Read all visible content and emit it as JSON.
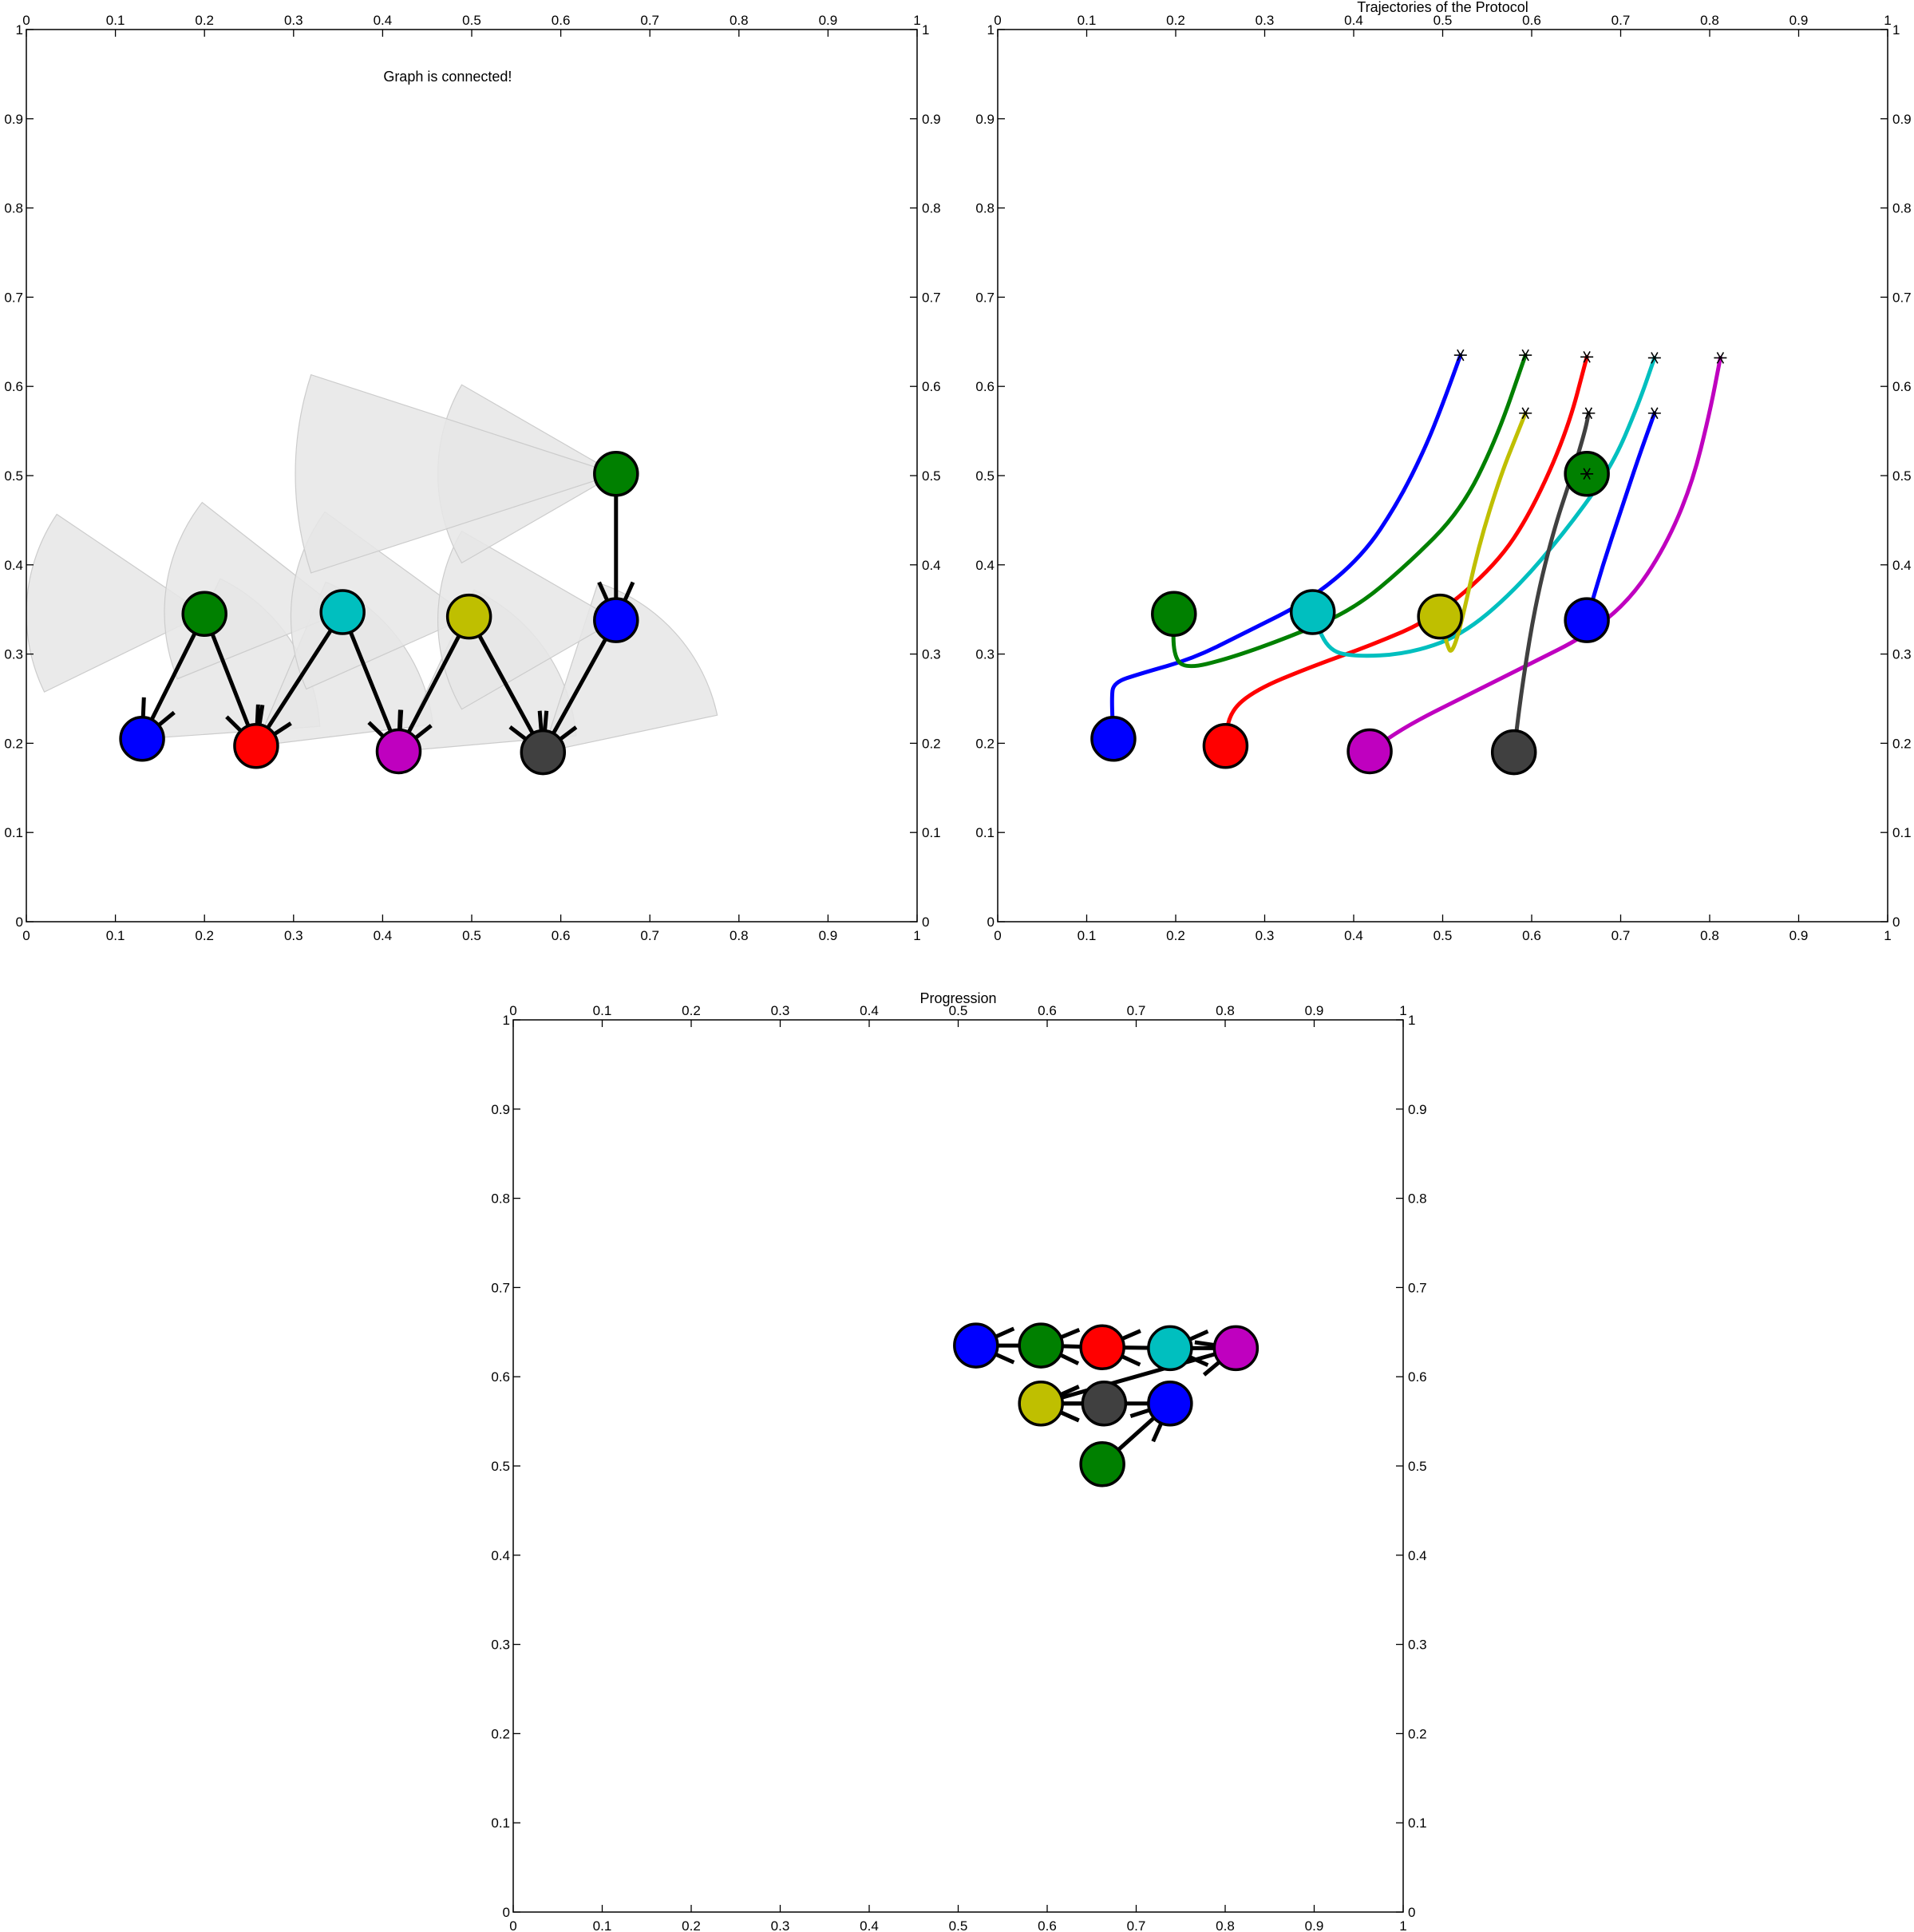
{
  "chart_data": [
    {
      "id": "p1",
      "type": "scatter",
      "title": "",
      "annotation": "Graph is connected!",
      "xlim": [
        0,
        1
      ],
      "ylim": [
        0,
        1
      ],
      "ticks": [
        "0",
        "0.1",
        "0.2",
        "0.3",
        "0.4",
        "0.5",
        "0.6",
        "0.7",
        "0.8",
        "0.9",
        "1"
      ],
      "grid": false,
      "colors": {
        "sector": "#e6e6e6",
        "sector_edge": "#cccccc",
        "arrow": "#000000"
      },
      "nodes": [
        {
          "x": 0.13,
          "y": 0.205,
          "color": "#0000ff"
        },
        {
          "x": 0.2,
          "y": 0.345,
          "color": "#008000"
        },
        {
          "x": 0.258,
          "y": 0.197,
          "color": "#ff0000"
        },
        {
          "x": 0.355,
          "y": 0.347,
          "color": "#00bfbf"
        },
        {
          "x": 0.418,
          "y": 0.191,
          "color": "#bf00bf"
        },
        {
          "x": 0.497,
          "y": 0.342,
          "color": "#bfbf00"
        },
        {
          "x": 0.58,
          "y": 0.19,
          "color": "#404040"
        },
        {
          "x": 0.662,
          "y": 0.338,
          "color": "#0000ff"
        },
        {
          "x": 0.662,
          "y": 0.502,
          "color": "#008000"
        }
      ],
      "sectors": [
        {
          "x": 0.13,
          "y": 0.205,
          "r": 0.2,
          "start": 4,
          "end": 64
        },
        {
          "x": 0.2,
          "y": 0.345,
          "r": 0.2,
          "start": 146,
          "end": 206
        },
        {
          "x": 0.258,
          "y": 0.197,
          "r": 0.2,
          "start": 7,
          "end": 67
        },
        {
          "x": 0.355,
          "y": 0.347,
          "r": 0.2,
          "start": 142,
          "end": 202
        },
        {
          "x": 0.418,
          "y": 0.191,
          "r": 0.2,
          "start": 5,
          "end": 65
        },
        {
          "x": 0.497,
          "y": 0.342,
          "r": 0.2,
          "start": 144,
          "end": 204
        },
        {
          "x": 0.58,
          "y": 0.19,
          "r": 0.2,
          "start": 12,
          "end": 72
        },
        {
          "x": 0.662,
          "y": 0.338,
          "r": 0.2,
          "start": 150,
          "end": 210
        },
        {
          "x": 0.662,
          "y": 0.502,
          "r": 0.2,
          "start": 150,
          "end": 210
        },
        {
          "x": 0.662,
          "y": 0.502,
          "r": 0.36,
          "start": 162,
          "end": 198
        }
      ],
      "arrows": [
        {
          "from": [
            0.2,
            0.345
          ],
          "to": [
            0.13,
            0.205
          ]
        },
        {
          "from": [
            0.2,
            0.345
          ],
          "to": [
            0.258,
            0.197
          ]
        },
        {
          "from": [
            0.355,
            0.347
          ],
          "to": [
            0.258,
            0.197
          ]
        },
        {
          "from": [
            0.355,
            0.347
          ],
          "to": [
            0.418,
            0.191
          ]
        },
        {
          "from": [
            0.497,
            0.342
          ],
          "to": [
            0.418,
            0.191
          ]
        },
        {
          "from": [
            0.497,
            0.342
          ],
          "to": [
            0.58,
            0.19
          ]
        },
        {
          "from": [
            0.662,
            0.338
          ],
          "to": [
            0.58,
            0.19
          ]
        },
        {
          "from": [
            0.662,
            0.502
          ],
          "to": [
            0.662,
            0.338
          ]
        }
      ]
    },
    {
      "id": "p2",
      "type": "line",
      "title": "Trajectories of the Protocol",
      "xlim": [
        0,
        1
      ],
      "ylim": [
        0,
        1
      ],
      "ticks": [
        "0",
        "0.1",
        "0.2",
        "0.3",
        "0.4",
        "0.5",
        "0.6",
        "0.7",
        "0.8",
        "0.9",
        "1"
      ],
      "grid": false,
      "series": [
        {
          "color": "#0000ff",
          "points": [
            [
              0.13,
              0.205
            ],
            [
              0.128,
              0.25
            ],
            [
              0.13,
              0.268
            ],
            [
              0.16,
              0.278
            ],
            [
              0.22,
              0.295
            ],
            [
              0.28,
              0.325
            ],
            [
              0.35,
              0.36
            ],
            [
              0.41,
              0.41
            ],
            [
              0.45,
              0.47
            ],
            [
              0.48,
              0.53
            ],
            [
              0.5,
              0.58
            ],
            [
              0.52,
              0.635
            ]
          ]
        },
        {
          "color": "#008000",
          "points": [
            [
              0.198,
              0.345
            ],
            [
              0.197,
              0.3
            ],
            [
              0.21,
              0.283
            ],
            [
              0.26,
              0.295
            ],
            [
              0.33,
              0.32
            ],
            [
              0.4,
              0.35
            ],
            [
              0.46,
              0.4
            ],
            [
              0.52,
              0.46
            ],
            [
              0.56,
              0.54
            ],
            [
              0.593,
              0.635
            ]
          ]
        },
        {
          "color": "#ff0000",
          "points": [
            [
              0.256,
              0.197
            ],
            [
              0.26,
              0.235
            ],
            [
              0.29,
              0.26
            ],
            [
              0.35,
              0.285
            ],
            [
              0.42,
              0.31
            ],
            [
              0.49,
              0.34
            ],
            [
              0.56,
              0.4
            ],
            [
              0.6,
              0.46
            ],
            [
              0.64,
              0.55
            ],
            [
              0.662,
              0.633
            ]
          ]
        },
        {
          "color": "#00bfbf",
          "points": [
            [
              0.354,
              0.347
            ],
            [
              0.37,
              0.305
            ],
            [
              0.4,
              0.297
            ],
            [
              0.46,
              0.3
            ],
            [
              0.52,
              0.32
            ],
            [
              0.58,
              0.37
            ],
            [
              0.64,
              0.44
            ],
            [
              0.69,
              0.51
            ],
            [
              0.72,
              0.58
            ],
            [
              0.738,
              0.632
            ]
          ]
        },
        {
          "color": "#bf00bf",
          "points": [
            [
              0.418,
              0.191
            ],
            [
              0.46,
              0.22
            ],
            [
              0.53,
              0.255
            ],
            [
              0.6,
              0.29
            ],
            [
              0.66,
              0.32
            ],
            [
              0.71,
              0.36
            ],
            [
              0.75,
              0.42
            ],
            [
              0.78,
              0.49
            ],
            [
              0.8,
              0.57
            ],
            [
              0.812,
              0.632
            ]
          ]
        },
        {
          "color": "#bfbf00",
          "points": [
            [
              0.497,
              0.342
            ],
            [
              0.505,
              0.31
            ],
            [
              0.51,
              0.3
            ],
            [
              0.52,
              0.33
            ],
            [
              0.54,
              0.42
            ],
            [
              0.565,
              0.5
            ],
            [
              0.585,
              0.55
            ],
            [
              0.593,
              0.57
            ]
          ]
        },
        {
          "color": "#404040",
          "points": [
            [
              0.58,
              0.19
            ],
            [
              0.59,
              0.27
            ],
            [
              0.605,
              0.36
            ],
            [
              0.625,
              0.44
            ],
            [
              0.645,
              0.5
            ],
            [
              0.66,
              0.55
            ],
            [
              0.664,
              0.57
            ]
          ]
        },
        {
          "color": "#0000ff",
          "points": [
            [
              0.662,
              0.338
            ],
            [
              0.68,
              0.4
            ],
            [
              0.7,
              0.46
            ],
            [
              0.72,
              0.52
            ],
            [
              0.738,
              0.57
            ]
          ]
        }
      ],
      "nodes": [
        {
          "x": 0.13,
          "y": 0.205,
          "color": "#0000ff"
        },
        {
          "x": 0.198,
          "y": 0.345,
          "color": "#008000"
        },
        {
          "x": 0.256,
          "y": 0.197,
          "color": "#ff0000"
        },
        {
          "x": 0.354,
          "y": 0.347,
          "color": "#00bfbf"
        },
        {
          "x": 0.418,
          "y": 0.191,
          "color": "#bf00bf"
        },
        {
          "x": 0.497,
          "y": 0.342,
          "color": "#bfbf00"
        },
        {
          "x": 0.58,
          "y": 0.19,
          "color": "#404040"
        },
        {
          "x": 0.662,
          "y": 0.338,
          "color": "#0000ff"
        },
        {
          "x": 0.662,
          "y": 0.502,
          "color": "#008000"
        }
      ],
      "end_markers": [
        [
          0.52,
          0.635
        ],
        [
          0.593,
          0.635
        ],
        [
          0.662,
          0.633
        ],
        [
          0.738,
          0.632
        ],
        [
          0.812,
          0.632
        ],
        [
          0.593,
          0.57
        ],
        [
          0.664,
          0.57
        ],
        [
          0.738,
          0.57
        ],
        [
          0.662,
          0.502
        ]
      ]
    },
    {
      "id": "p3",
      "type": "scatter",
      "title": "Progression",
      "xlim": [
        0,
        1
      ],
      "ylim": [
        0,
        1
      ],
      "ticks": [
        "0",
        "0.1",
        "0.2",
        "0.3",
        "0.4",
        "0.5",
        "0.6",
        "0.7",
        "0.8",
        "0.9",
        "1"
      ],
      "grid": false,
      "nodes": [
        {
          "x": 0.52,
          "y": 0.635,
          "color": "#0000ff"
        },
        {
          "x": 0.593,
          "y": 0.635,
          "color": "#008000"
        },
        {
          "x": 0.662,
          "y": 0.633,
          "color": "#ff0000"
        },
        {
          "x": 0.738,
          "y": 0.632,
          "color": "#00bfbf"
        },
        {
          "x": 0.812,
          "y": 0.632,
          "color": "#bf00bf"
        },
        {
          "x": 0.593,
          "y": 0.57,
          "color": "#bfbf00"
        },
        {
          "x": 0.664,
          "y": 0.57,
          "color": "#404040"
        },
        {
          "x": 0.738,
          "y": 0.57,
          "color": "#0000ff"
        },
        {
          "x": 0.662,
          "y": 0.502,
          "color": "#008000"
        }
      ],
      "arrows": [
        {
          "from": [
            0.593,
            0.635
          ],
          "to": [
            0.52,
            0.635
          ]
        },
        {
          "from": [
            0.662,
            0.633
          ],
          "to": [
            0.593,
            0.635
          ]
        },
        {
          "from": [
            0.738,
            0.632
          ],
          "to": [
            0.662,
            0.633
          ]
        },
        {
          "from": [
            0.812,
            0.632
          ],
          "to": [
            0.738,
            0.632
          ]
        },
        {
          "from": [
            0.593,
            0.57
          ],
          "to": [
            0.812,
            0.632
          ]
        },
        {
          "from": [
            0.664,
            0.57
          ],
          "to": [
            0.593,
            0.57
          ]
        },
        {
          "from": [
            0.738,
            0.57
          ],
          "to": [
            0.593,
            0.57
          ]
        },
        {
          "from": [
            0.662,
            0.502
          ],
          "to": [
            0.738,
            0.57
          ]
        }
      ]
    }
  ]
}
